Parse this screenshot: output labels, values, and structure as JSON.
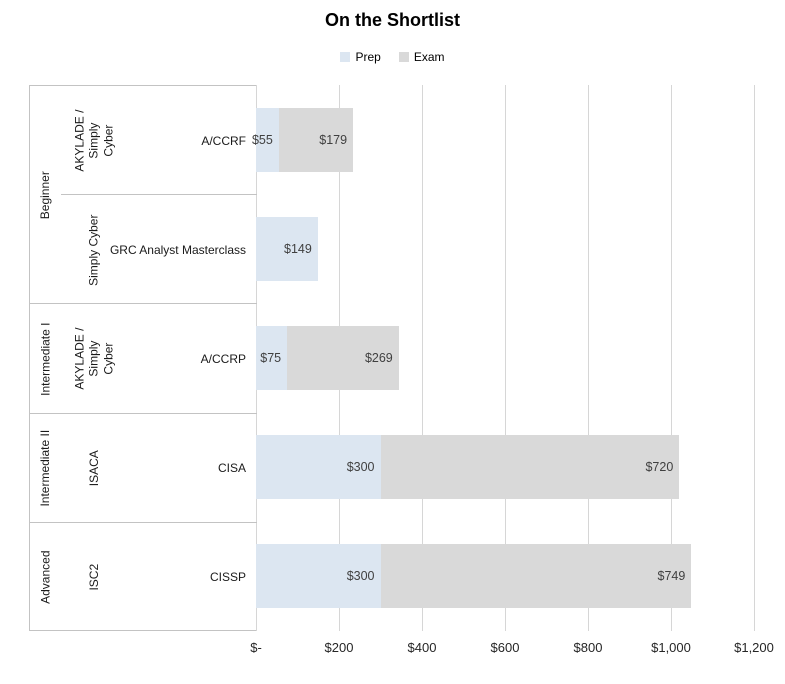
{
  "title": "On the Shortlist",
  "legend": {
    "prep_label": "Prep",
    "exam_label": "Exam"
  },
  "colors": {
    "prep_fill": "#dce6f1",
    "exam_fill": "#d9d9d9",
    "gridline": "#d6d6d6",
    "table_border": "#c3c3c3",
    "data_label": "#404040"
  },
  "chart_data": {
    "type": "bar",
    "orientation": "horizontal",
    "stacked": true,
    "title": "On the Shortlist",
    "legend_position": "top",
    "grid": true,
    "series_names": [
      "Prep",
      "Exam"
    ],
    "xlabel": "",
    "ylabel": "",
    "x_range": [
      0,
      1200
    ],
    "x_tick_values": [
      0,
      200,
      400,
      600,
      800,
      1000,
      1200
    ],
    "x_tick_labels": [
      "$-",
      "$200",
      "$400",
      "$600",
      "$800",
      "$1,000",
      "$1,200"
    ],
    "groups": [
      {
        "level": "Beginner",
        "rows": [
          {
            "provider": "AKYLADE / Simply Cyber",
            "course": "A/CCRF",
            "prep": 55,
            "exam": 179,
            "prep_label": "$55",
            "exam_label": "$179"
          },
          {
            "provider": "Simply Cyber",
            "course": "GRC Analyst Masterclass",
            "prep": 149,
            "exam": 0,
            "prep_label": "$149",
            "exam_label": ""
          }
        ]
      },
      {
        "level": "Intermediate I",
        "rows": [
          {
            "provider": "AKYLADE / Simply Cyber",
            "course": "A/CCRP",
            "prep": 75,
            "exam": 269,
            "prep_label": "$75",
            "exam_label": "$269"
          }
        ]
      },
      {
        "level": "Intermediate II",
        "rows": [
          {
            "provider": "ISACA",
            "course": "CISA",
            "prep": 300,
            "exam": 720,
            "prep_label": "$300",
            "exam_label": "$720"
          }
        ]
      },
      {
        "level": "Advanced",
        "rows": [
          {
            "provider": "ISC2",
            "course": "CISSP",
            "prep": 300,
            "exam": 749,
            "prep_label": "$300",
            "exam_label": "$749"
          }
        ]
      }
    ]
  }
}
